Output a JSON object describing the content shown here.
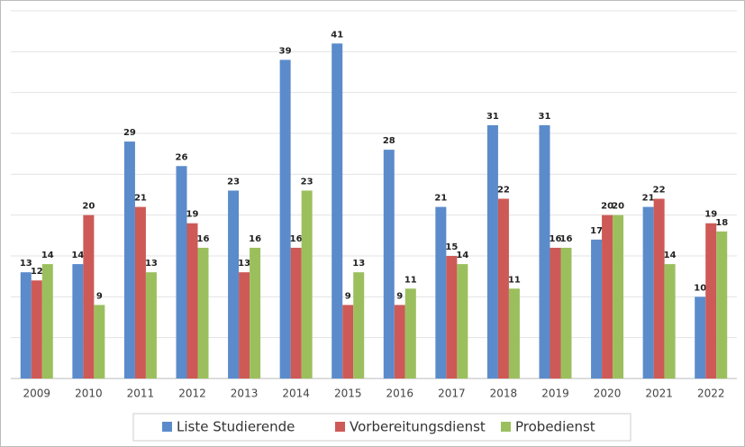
{
  "chart_data": {
    "type": "bar",
    "categories": [
      "2009",
      "2010",
      "2011",
      "2012",
      "2013",
      "2014",
      "2015",
      "2016",
      "2017",
      "2018",
      "2019",
      "2020",
      "2021",
      "2022"
    ],
    "series": [
      {
        "name": "Liste Studierende",
        "color": "#5b8bcb",
        "values": [
          13,
          14,
          29,
          26,
          23,
          39,
          41,
          28,
          21,
          31,
          31,
          17,
          21,
          10
        ]
      },
      {
        "name": "Vorbereitungsdienst",
        "color": "#cd5a57",
        "values": [
          12,
          20,
          21,
          19,
          13,
          16,
          9,
          9,
          15,
          22,
          16,
          20,
          22,
          19
        ]
      },
      {
        "name": "Probedienst",
        "color": "#9cbf5e",
        "values": [
          14,
          9,
          13,
          16,
          16,
          23,
          13,
          11,
          14,
          11,
          16,
          20,
          14,
          18
        ]
      }
    ],
    "ylim": [
      0,
      45
    ],
    "yticks": [
      0,
      5,
      10,
      15,
      20,
      25,
      30,
      35,
      40,
      45
    ],
    "grid": true,
    "legend": "bottom"
  }
}
